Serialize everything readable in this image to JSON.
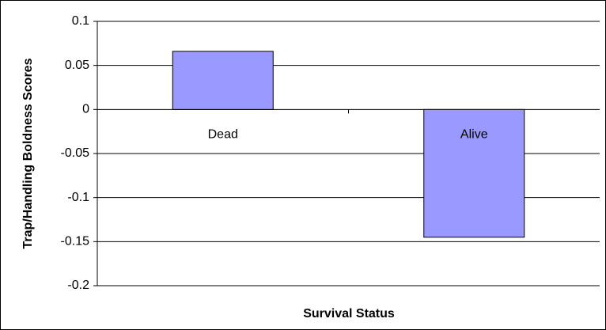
{
  "chart_data": {
    "type": "bar",
    "categories": [
      "Dead",
      "Alive"
    ],
    "values": [
      0.066,
      -0.145
    ],
    "color": "#9999ff",
    "xlabel": "Survival Status",
    "ylabel": "Trap/Handling Boldness Scores",
    "ylim": [
      -0.2,
      0.1
    ],
    "yticks": [
      -0.2,
      -0.15,
      -0.1,
      -0.05,
      0,
      0.05,
      0.1
    ],
    "grid": true
  }
}
